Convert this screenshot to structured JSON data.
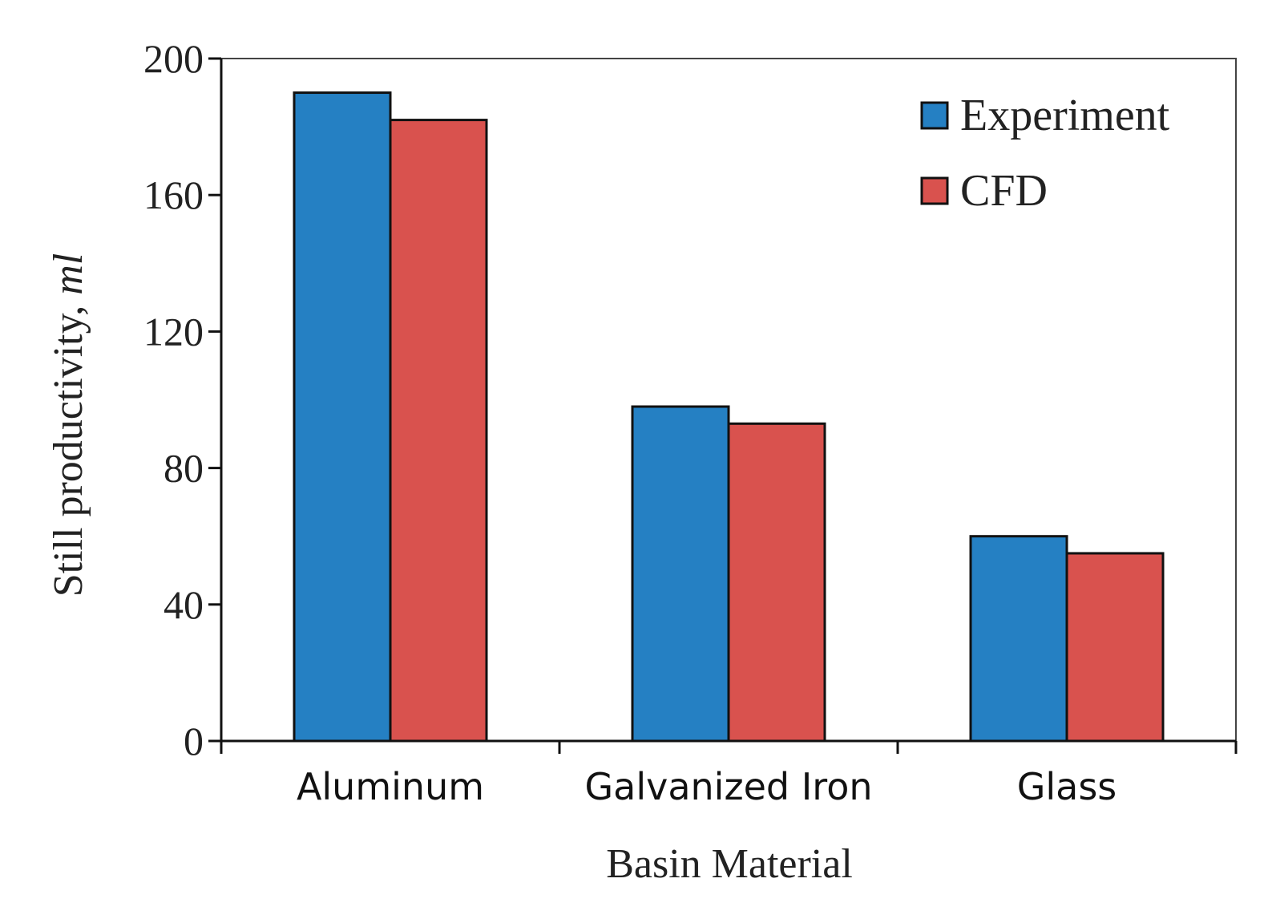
{
  "chart_data": {
    "type": "bar",
    "title": "",
    "xlabel": "Basin Material",
    "ylabel_main": "Still productivity, ",
    "ylabel_unit": "ml",
    "categories": [
      "Aluminum",
      "Galvanized Iron",
      "Glass"
    ],
    "series": [
      {
        "name": "Experiment",
        "color": "#2580c3",
        "values": [
          190,
          98,
          60
        ]
      },
      {
        "name": "CFD",
        "color": "#d9524e",
        "values": [
          182,
          93,
          55
        ]
      }
    ],
    "ylim": [
      0,
      200
    ],
    "yticks": [
      0,
      40,
      80,
      120,
      160,
      200
    ],
    "grid": false,
    "legend": "top-right"
  }
}
